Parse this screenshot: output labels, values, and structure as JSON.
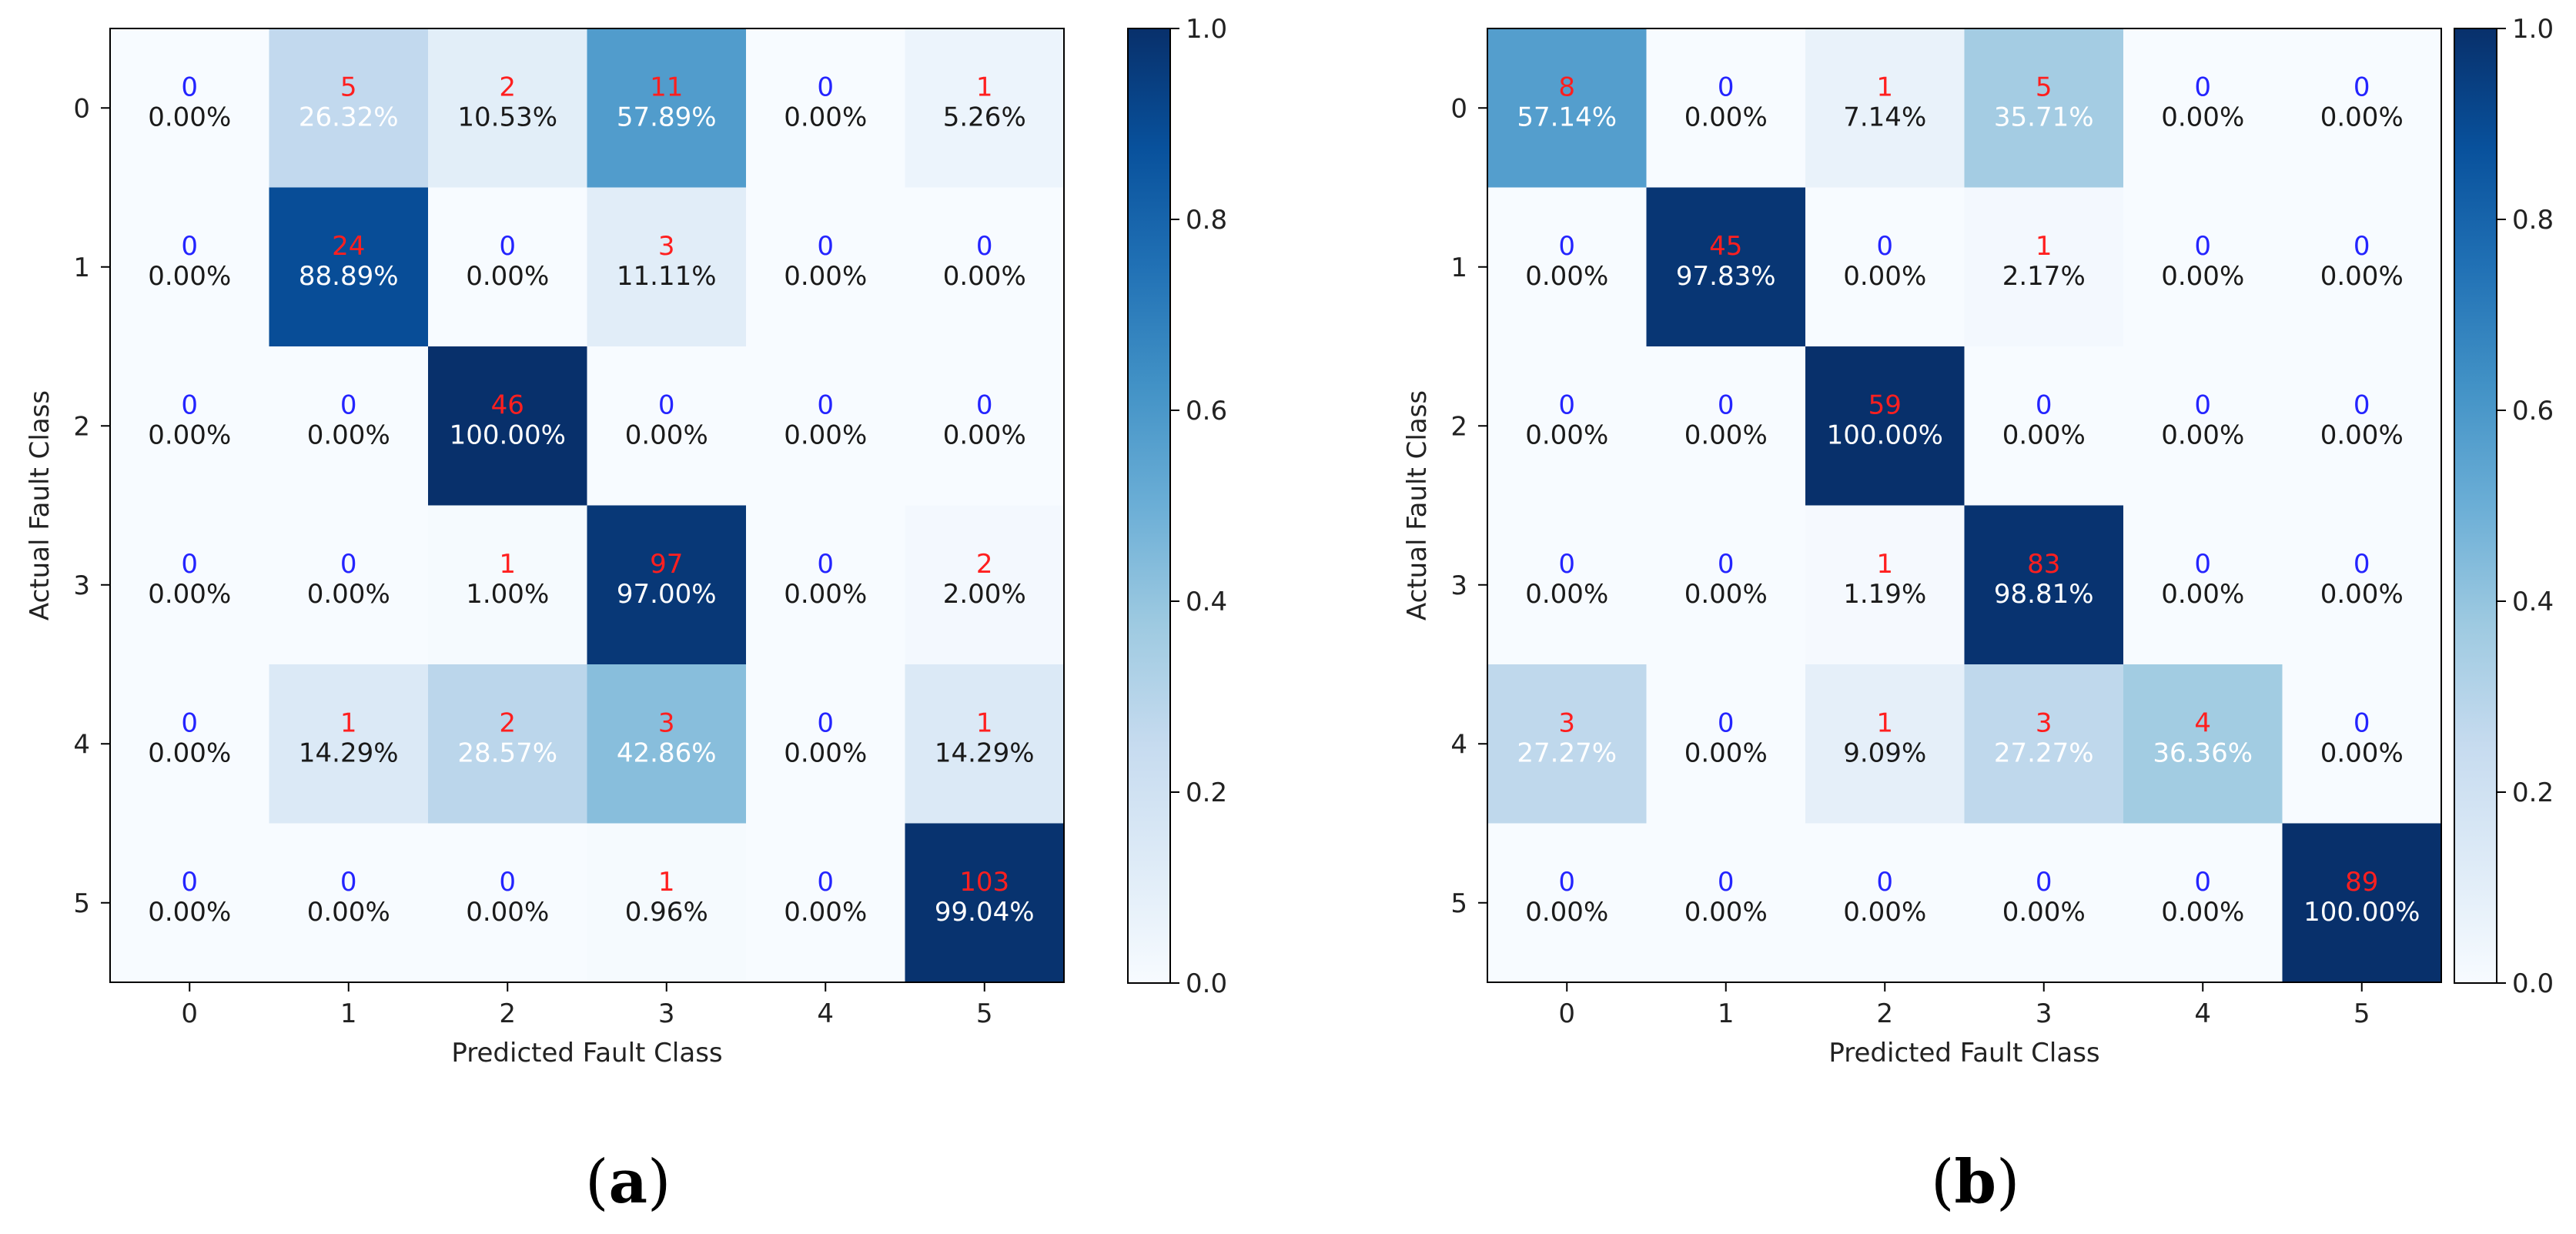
{
  "colors": {
    "count_zero": "#2424ff",
    "count_nonzero": "#ff1f1f",
    "text_dark": "#1a1a1a",
    "text_light": "#ffffff",
    "axis": "#000000"
  },
  "chart_data": [
    {
      "type": "heatmap",
      "subtype": "confusion-matrix",
      "panel_label": "a",
      "xlabel": "Predicted Fault Class",
      "ylabel": "Actual Fault Class",
      "x_ticks": [
        "0",
        "1",
        "2",
        "3",
        "4",
        "5"
      ],
      "y_ticks": [
        "0",
        "1",
        "2",
        "3",
        "4",
        "5"
      ],
      "colorbar": {
        "range": [
          0.0,
          1.0
        ],
        "ticks": [
          "0.0",
          "0.2",
          "0.4",
          "0.6",
          "0.8",
          "1.0"
        ],
        "colormap": "Blues"
      },
      "counts": [
        [
          0,
          5,
          2,
          11,
          0,
          1
        ],
        [
          0,
          24,
          0,
          3,
          0,
          0
        ],
        [
          0,
          0,
          46,
          0,
          0,
          0
        ],
        [
          0,
          0,
          1,
          97,
          0,
          2
        ],
        [
          0,
          1,
          2,
          3,
          0,
          1
        ],
        [
          0,
          0,
          0,
          1,
          0,
          103
        ]
      ],
      "percentages": [
        [
          "0.00%",
          "26.32%",
          "10.53%",
          "57.89%",
          "0.00%",
          "5.26%"
        ],
        [
          "0.00%",
          "88.89%",
          "0.00%",
          "11.11%",
          "0.00%",
          "0.00%"
        ],
        [
          "0.00%",
          "0.00%",
          "100.00%",
          "0.00%",
          "0.00%",
          "0.00%"
        ],
        [
          "0.00%",
          "0.00%",
          "1.00%",
          "97.00%",
          "0.00%",
          "2.00%"
        ],
        [
          "0.00%",
          "14.29%",
          "28.57%",
          "42.86%",
          "0.00%",
          "14.29%"
        ],
        [
          "0.00%",
          "0.00%",
          "0.00%",
          "0.96%",
          "0.00%",
          "99.04%"
        ]
      ]
    },
    {
      "type": "heatmap",
      "subtype": "confusion-matrix",
      "panel_label": "b",
      "xlabel": "Predicted Fault Class",
      "ylabel": "Actual Fault Class",
      "x_ticks": [
        "0",
        "1",
        "2",
        "3",
        "4",
        "5"
      ],
      "y_ticks": [
        "0",
        "1",
        "2",
        "3",
        "4",
        "5"
      ],
      "colorbar": {
        "range": [
          0.0,
          1.0
        ],
        "ticks": [
          "0.0",
          "0.2",
          "0.4",
          "0.6",
          "0.8",
          "1.0"
        ],
        "colormap": "Blues"
      },
      "counts": [
        [
          8,
          0,
          1,
          5,
          0,
          0
        ],
        [
          0,
          45,
          0,
          1,
          0,
          0
        ],
        [
          0,
          0,
          59,
          0,
          0,
          0
        ],
        [
          0,
          0,
          1,
          83,
          0,
          0
        ],
        [
          3,
          0,
          1,
          3,
          4,
          0
        ],
        [
          0,
          0,
          0,
          0,
          0,
          89
        ]
      ],
      "percentages": [
        [
          "57.14%",
          "0.00%",
          "7.14%",
          "35.71%",
          "0.00%",
          "0.00%"
        ],
        [
          "0.00%",
          "97.83%",
          "0.00%",
          "2.17%",
          "0.00%",
          "0.00%"
        ],
        [
          "0.00%",
          "0.00%",
          "100.00%",
          "0.00%",
          "0.00%",
          "0.00%"
        ],
        [
          "0.00%",
          "0.00%",
          "1.19%",
          "98.81%",
          "0.00%",
          "0.00%"
        ],
        [
          "27.27%",
          "0.00%",
          "9.09%",
          "27.27%",
          "36.36%",
          "0.00%"
        ],
        [
          "0.00%",
          "0.00%",
          "0.00%",
          "0.00%",
          "0.00%",
          "100.00%"
        ]
      ]
    }
  ]
}
